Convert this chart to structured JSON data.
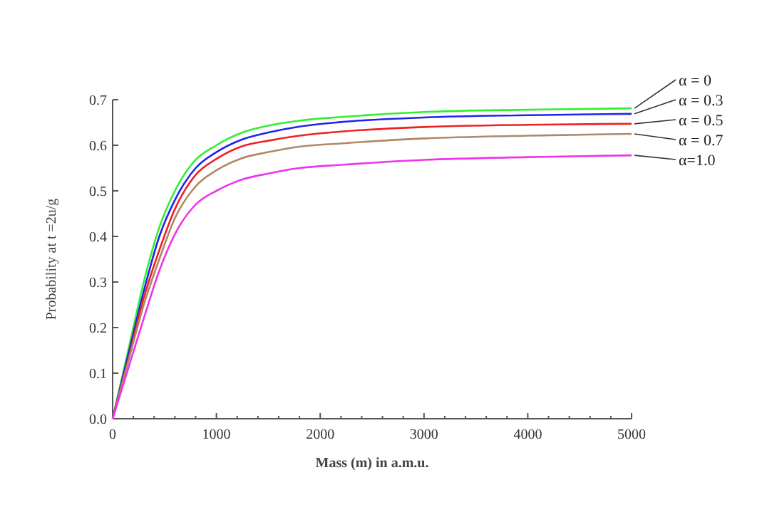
{
  "chart_data": {
    "type": "line",
    "xlabel": "Mass (m) in a.m.u.",
    "ylabel": "Probability at t =2u/g",
    "x": [
      0,
      150,
      300,
      450,
      600,
      800,
      1000,
      1250,
      1500,
      1800,
      2200,
      3000,
      4000,
      5000
    ],
    "series": [
      {
        "name": "α = 0",
        "color": "#33ee33",
        "values": [
          0,
          0.15,
          0.3,
          0.42,
          0.5,
          0.568,
          0.6,
          0.628,
          0.643,
          0.654,
          0.662,
          0.673,
          0.678,
          0.681
        ]
      },
      {
        "name": "α = 0.3",
        "color": "#2222ee",
        "values": [
          0,
          0.14,
          0.28,
          0.4,
          0.48,
          0.55,
          0.585,
          0.613,
          0.628,
          0.641,
          0.651,
          0.661,
          0.666,
          0.669
        ]
      },
      {
        "name": "α = 0.5",
        "color": "#ee2222",
        "values": [
          0,
          0.13,
          0.265,
          0.37,
          0.46,
          0.535,
          0.57,
          0.598,
          0.61,
          0.621,
          0.63,
          0.64,
          0.645,
          0.647
        ]
      },
      {
        "name": "α = 0.7",
        "color": "#b08866",
        "values": [
          0,
          0.125,
          0.25,
          0.35,
          0.44,
          0.51,
          0.545,
          0.572,
          0.585,
          0.597,
          0.604,
          0.615,
          0.621,
          0.625
        ]
      },
      {
        "name": "α=1.0",
        "color": "#ee33ee",
        "values": [
          0,
          0.11,
          0.22,
          0.325,
          0.405,
          0.47,
          0.5,
          0.525,
          0.538,
          0.55,
          0.557,
          0.568,
          0.574,
          0.578
        ]
      }
    ],
    "xlim": [
      0,
      5000
    ],
    "ylim": [
      0,
      0.7
    ],
    "xticks": [
      0,
      {
        "value": 200,
        "label": null
      },
      {
        "value": 400,
        "label": null
      },
      {
        "value": 600,
        "label": null
      },
      {
        "value": 800,
        "label": null
      },
      1000,
      {
        "value": 1200,
        "label": null
      },
      {
        "value": 1400,
        "label": null
      },
      {
        "value": 1600,
        "label": null
      },
      {
        "value": 1800,
        "label": null
      },
      2000,
      {
        "value": 2200,
        "label": null
      },
      {
        "value": 2400,
        "label": null
      },
      {
        "value": 2600,
        "label": null
      },
      {
        "value": 2800,
        "label": null
      },
      3000,
      {
        "value": 3200,
        "label": null
      },
      {
        "value": 3400,
        "label": null
      },
      {
        "value": 3600,
        "label": null
      },
      {
        "value": 3800,
        "label": null
      },
      4000,
      {
        "value": 4200,
        "label": null
      },
      {
        "value": 4400,
        "label": null
      },
      {
        "value": 4600,
        "label": null
      },
      {
        "value": 4800,
        "label": null
      },
      5000
    ],
    "yticks": [
      {
        "value": 0,
        "label": "0.0"
      },
      0.1,
      0.2,
      0.3,
      0.4,
      0.5,
      0.6,
      0.7
    ],
    "grid": false,
    "legend": "right",
    "marker": "none",
    "line_style": "solid"
  }
}
